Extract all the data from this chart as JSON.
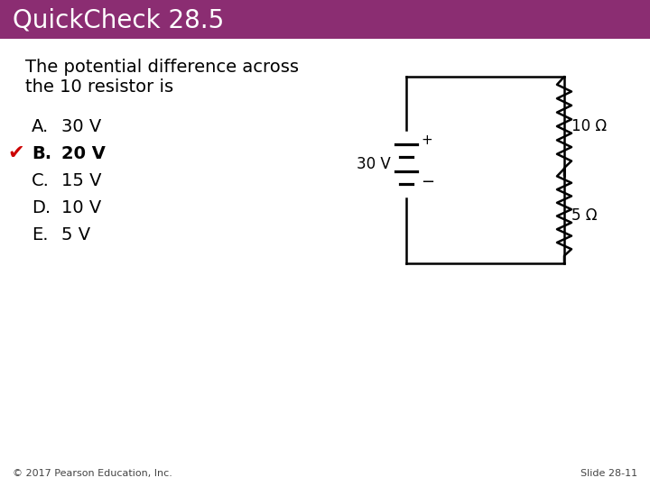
{
  "title": "QuickCheck 28.5",
  "title_bg_color": "#8B2D72",
  "title_text_color": "#FFFFFF",
  "body_bg_color": "#FFFFFF",
  "question_line1": "The potential difference across",
  "question_line2": "the 10 resistor is",
  "options": [
    {
      "letter": "A.",
      "text": "30 V",
      "bold": false,
      "correct": false
    },
    {
      "letter": "B.",
      "text": "20 V",
      "bold": true,
      "correct": true
    },
    {
      "letter": "C.",
      "text": "15 V",
      "bold": false,
      "correct": false
    },
    {
      "letter": "D.",
      "text": "10 V",
      "bold": false,
      "correct": false
    },
    {
      "letter": "E.",
      "text": "5 V",
      "bold": false,
      "correct": false
    }
  ],
  "checkmark_color": "#CC0000",
  "battery_label": "30 V",
  "resistor1_label": "10 Ω",
  "resistor2_label": "5 Ω",
  "footer_left": "© 2017 Pearson Education, Inc.",
  "footer_right": "Slide 28-11"
}
